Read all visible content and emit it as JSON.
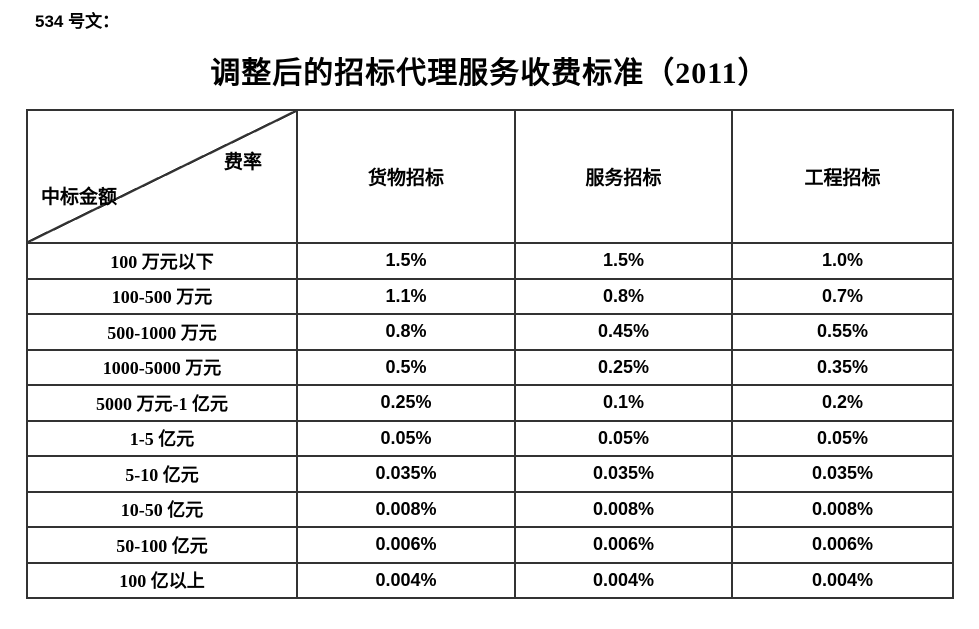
{
  "page": {
    "doc_ref": "534 号文：",
    "title": "调整后的招标代理服务收费标准（2011）"
  },
  "table": {
    "corner": {
      "top_right": "费率",
      "bottom_left": "中标金额"
    },
    "columns": [
      "货物招标",
      "服务招标",
      "工程招标"
    ],
    "rows": [
      {
        "label": "100 万元以下",
        "values": [
          "1.5%",
          "1.5%",
          "1.0%"
        ]
      },
      {
        "label": "100-500 万元",
        "values": [
          "1.1%",
          "0.8%",
          "0.7%"
        ]
      },
      {
        "label": "500-1000 万元",
        "values": [
          "0.8%",
          "0.45%",
          "0.55%"
        ]
      },
      {
        "label": "1000-5000 万元",
        "values": [
          "0.5%",
          "0.25%",
          "0.35%"
        ]
      },
      {
        "label": "5000 万元-1 亿元",
        "values": [
          "0.25%",
          "0.1%",
          "0.2%"
        ]
      },
      {
        "label": "1-5 亿元",
        "values": [
          "0.05%",
          "0.05%",
          "0.05%"
        ]
      },
      {
        "label": "5-10 亿元",
        "values": [
          "0.035%",
          "0.035%",
          "0.035%"
        ]
      },
      {
        "label": "10-50 亿元",
        "values": [
          "0.008%",
          "0.008%",
          "0.008%"
        ]
      },
      {
        "label": "50-100 亿元",
        "values": [
          "0.006%",
          "0.006%",
          "0.006%"
        ]
      },
      {
        "label": "100 亿以上",
        "values": [
          "0.004%",
          "0.004%",
          "0.004%"
        ]
      }
    ]
  },
  "colors": {
    "background": "#ffffff",
    "text": "#000000",
    "border": "#333333"
  }
}
